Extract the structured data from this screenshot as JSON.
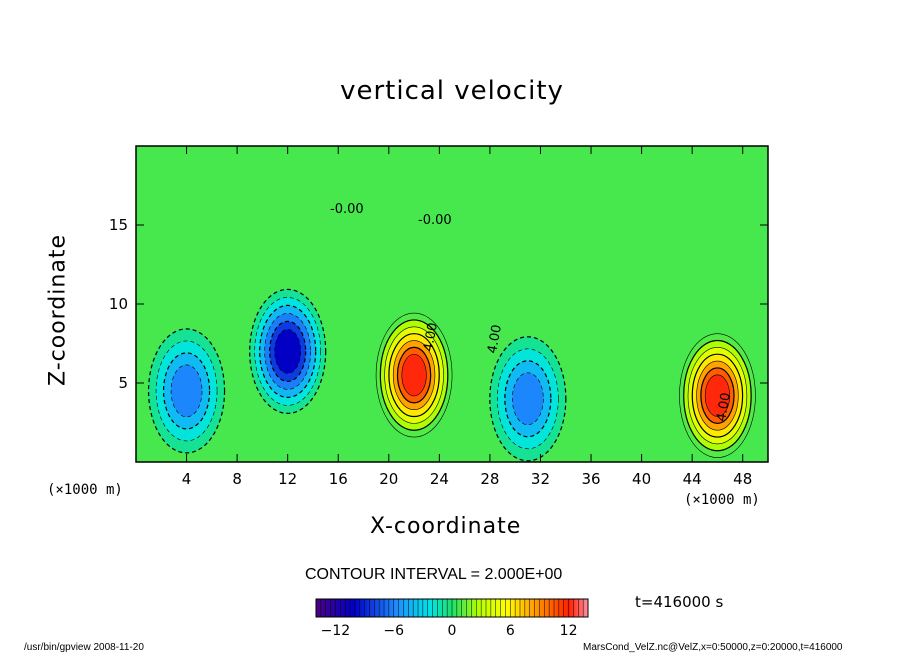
{
  "chart_data": {
    "type": "heatmap",
    "title": "vertical velocity",
    "xlabel": "X-coordinate",
    "ylabel": "Z-coordinate",
    "x_unit": "(×1000 m)",
    "z_unit": "(×1000 m)",
    "xlim": [
      0,
      50
    ],
    "ylim": [
      0,
      20
    ],
    "x_ticks": [
      "4",
      "8",
      "12",
      "16",
      "20",
      "24",
      "28",
      "32",
      "36",
      "40",
      "44",
      "48"
    ],
    "y_ticks": [
      "5",
      "10",
      "15"
    ],
    "contour_interval": "CONTOUR INTERVAL = 2.000E+00",
    "contour_labels": [
      "-0.00",
      "-0.00",
      "4.00",
      "4.00",
      "4.00"
    ],
    "colorbar": {
      "ticks": [
        "−12",
        "−6",
        "0",
        "6",
        "12"
      ],
      "range": [
        -14,
        14
      ]
    },
    "time": "t=416000 s",
    "extrema": [
      {
        "x": 22,
        "z": 5.5,
        "w": 13,
        "kind": "updraft"
      },
      {
        "x": 46,
        "z": 4.2,
        "w": 13,
        "kind": "updraft"
      },
      {
        "x": 12,
        "z": 7,
        "w": -11,
        "kind": "downdraft"
      },
      {
        "x": 31,
        "z": 4,
        "w": -7,
        "kind": "downdraft"
      },
      {
        "x": 4,
        "z": 4.5,
        "w": -7,
        "kind": "downdraft"
      }
    ]
  },
  "footer": {
    "left": "/usr/bin/gpview   2008-11-20",
    "right": "MarsCond_VelZ.nc@VelZ,x=0:50000,z=0:20000,t=416000"
  },
  "colors": {
    "background": "#ffffff",
    "frame": "#000000"
  }
}
